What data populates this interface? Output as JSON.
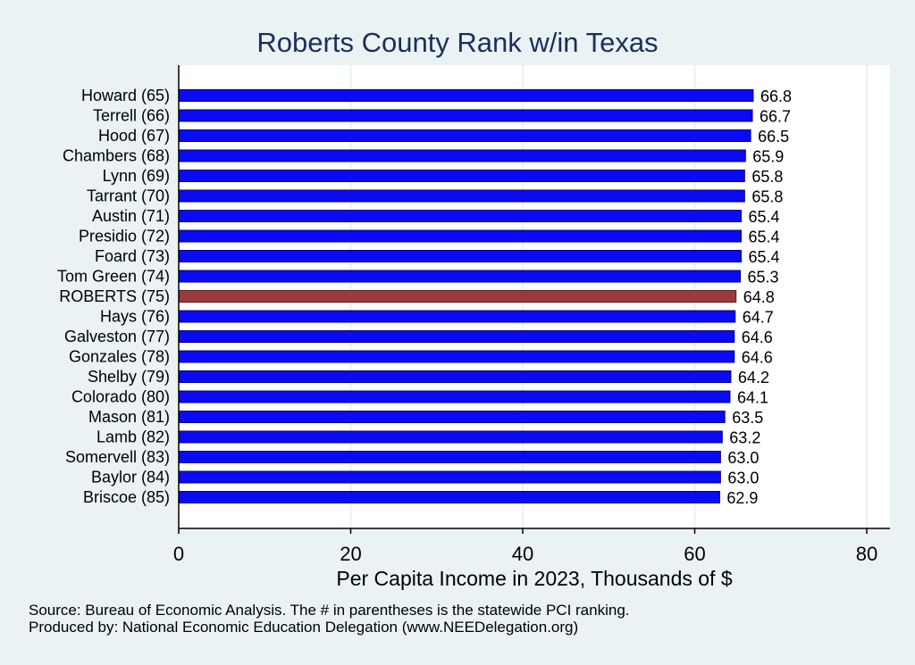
{
  "chart_data": {
    "type": "bar",
    "orientation": "horizontal",
    "title": "Roberts County Rank w/in Texas",
    "xlabel": "Per Capita Income in 2023, Thousands of $",
    "ylabel": "",
    "xlim": [
      0,
      80
    ],
    "xticks": [
      0,
      20,
      40,
      60,
      80
    ],
    "grid": true,
    "categories": [
      "Howard (65)",
      "Terrell (66)",
      "Hood (67)",
      "Chambers (68)",
      "Lynn (69)",
      "Tarrant (70)",
      "Austin (71)",
      "Presidio (72)",
      "Foard (73)",
      "Tom Green (74)",
      "ROBERTS (75)",
      "Hays (76)",
      "Galveston (77)",
      "Gonzales (78)",
      "Shelby (79)",
      "Colorado (80)",
      "Mason (81)",
      "Lamb (82)",
      "Somervell (83)",
      "Baylor (84)",
      "Briscoe (85)"
    ],
    "values": [
      66.8,
      66.7,
      66.5,
      65.9,
      65.8,
      65.8,
      65.4,
      65.4,
      65.4,
      65.3,
      64.8,
      64.7,
      64.6,
      64.6,
      64.2,
      64.1,
      63.5,
      63.2,
      63.0,
      63.0,
      62.9
    ],
    "value_labels": [
      "66.8",
      "66.7",
      "66.5",
      "65.9",
      "65.8",
      "65.8",
      "65.4",
      "65.4",
      "65.4",
      "65.3",
      "64.8",
      "64.7",
      "64.6",
      "64.6",
      "64.2",
      "64.1",
      "63.5",
      "63.2",
      "63.0",
      "63.0",
      "62.9"
    ],
    "highlight_index": 10,
    "colors": {
      "bar": "#0a0af5",
      "bar_edge": "#000080",
      "highlight": "#9b3a3a",
      "highlight_edge": "#5a1a1a",
      "title": "#1a2f5c",
      "background": "#eaf2f3",
      "plot_background": "#ffffff",
      "grid": "#e6eef0"
    }
  },
  "notes": {
    "source": "Source: Bureau of Economic Analysis. The # in parentheses is the statewide PCI ranking.",
    "produced_by": "Produced by: National Economic Education Delegation (www.NEEDelegation.org)"
  }
}
